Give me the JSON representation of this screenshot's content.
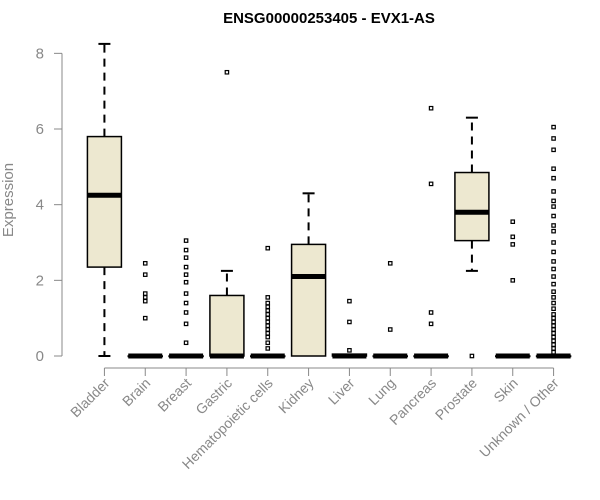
{
  "chart_data": {
    "type": "boxplot",
    "title": "ENSG00000253405 - EVX1-AS",
    "xlabel": "",
    "ylabel": "Expression",
    "ylim": [
      0,
      8.3
    ],
    "yticks": [
      0,
      2,
      4,
      6,
      8
    ],
    "box_fill": "#ede8d0",
    "categories": [
      "Bladder",
      "Brain",
      "Breast",
      "Gastric",
      "Hematopoietic cells",
      "Kidney",
      "Liver",
      "Lung",
      "Pancreas",
      "Prostate",
      "Skin",
      "Unknown / Other"
    ],
    "boxes": [
      {
        "category": "Bladder",
        "min": 0,
        "q1": 2.35,
        "median": 4.25,
        "q3": 5.8,
        "max": 8.25,
        "outliers": []
      },
      {
        "category": "Brain",
        "min": 0,
        "q1": 0,
        "median": 0,
        "q3": 0,
        "max": 0,
        "outliers": [
          1.0,
          1.45,
          1.55,
          1.65,
          2.15,
          2.45
        ]
      },
      {
        "category": "Breast",
        "min": 0,
        "q1": 0,
        "median": 0,
        "q3": 0,
        "max": 0,
        "outliers": [
          0.35,
          0.85,
          1.15,
          1.4,
          1.65,
          1.95,
          2.15,
          2.35,
          2.6,
          2.8,
          3.05
        ]
      },
      {
        "category": "Gastric",
        "min": 0,
        "q1": 0,
        "median": 0,
        "q3": 1.6,
        "max": 2.25,
        "outliers": [
          7.5
        ]
      },
      {
        "category": "Hematopoietic cells",
        "min": 0,
        "q1": 0,
        "median": 0,
        "q3": 0,
        "max": 0,
        "outliers": [
          0.2,
          0.35,
          0.5,
          0.6,
          0.7,
          0.8,
          0.9,
          1.0,
          1.1,
          1.2,
          1.3,
          1.4,
          1.55,
          2.85
        ]
      },
      {
        "category": "Kidney",
        "min": 0,
        "q1": 0,
        "median": 2.1,
        "q3": 2.95,
        "max": 4.3,
        "outliers": []
      },
      {
        "category": "Liver",
        "min": 0,
        "q1": 0,
        "median": 0,
        "q3": 0.05,
        "max": 0.05,
        "outliers": [
          0.15,
          0.9,
          1.45
        ]
      },
      {
        "category": "Lung",
        "min": 0,
        "q1": 0,
        "median": 0,
        "q3": 0,
        "max": 0,
        "outliers": [
          0.7,
          2.45
        ]
      },
      {
        "category": "Pancreas",
        "min": 0,
        "q1": 0,
        "median": 0,
        "q3": 0,
        "max": 0,
        "outliers": [
          0.85,
          1.15,
          4.55,
          6.55
        ]
      },
      {
        "category": "Prostate",
        "min": 2.25,
        "q1": 3.05,
        "median": 3.8,
        "q3": 4.85,
        "max": 6.3,
        "outliers": [
          0
        ]
      },
      {
        "category": "Skin",
        "min": 0,
        "q1": 0,
        "median": 0,
        "q3": 0,
        "max": 0,
        "outliers": [
          2.0,
          2.95,
          3.15,
          3.55
        ]
      },
      {
        "category": "Unknown / Other",
        "min": 0,
        "q1": 0,
        "median": 0,
        "q3": 0,
        "max": 0,
        "outliers": [
          0.1,
          0.2,
          0.3,
          0.4,
          0.5,
          0.6,
          0.7,
          0.8,
          0.9,
          1.0,
          1.1,
          1.25,
          1.4,
          1.55,
          1.7,
          1.9,
          2.1,
          2.3,
          2.5,
          2.75,
          3.0,
          3.3,
          3.45,
          3.7,
          3.95,
          4.1,
          4.35,
          4.7,
          4.95,
          5.45,
          5.75,
          6.05
        ]
      }
    ]
  }
}
